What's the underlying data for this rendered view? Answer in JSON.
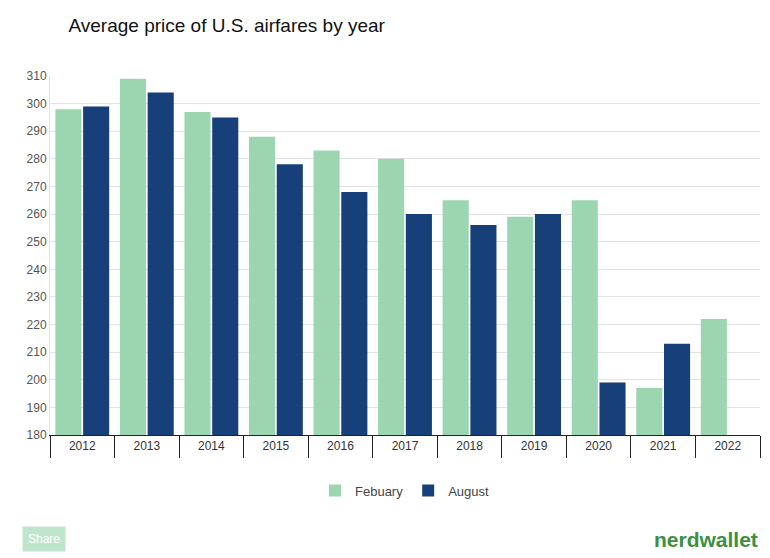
{
  "chart_data": {
    "type": "bar",
    "title": "Average price of U.S. airfares by year",
    "categories": [
      "2012",
      "2013",
      "2014",
      "2015",
      "2016",
      "2017",
      "2018",
      "2019",
      "2020",
      "2021",
      "2022"
    ],
    "series": [
      {
        "name": "Febuary",
        "color": "#9bd6b1",
        "values": [
          298,
          309,
          297,
          288,
          283,
          280,
          265,
          259,
          265,
          197,
          222
        ]
      },
      {
        "name": "August",
        "color": "#173f7a",
        "values": [
          299,
          304,
          295,
          278,
          268,
          260,
          256,
          260,
          199,
          213,
          null
        ]
      }
    ],
    "ylim": [
      180,
      310
    ],
    "yticks": [
      180,
      190,
      200,
      210,
      220,
      230,
      240,
      250,
      260,
      270,
      280,
      290,
      300,
      310
    ],
    "grid": true,
    "legend": "bottom",
    "annotations": [
      "Share",
      "nerdwallet"
    ]
  }
}
